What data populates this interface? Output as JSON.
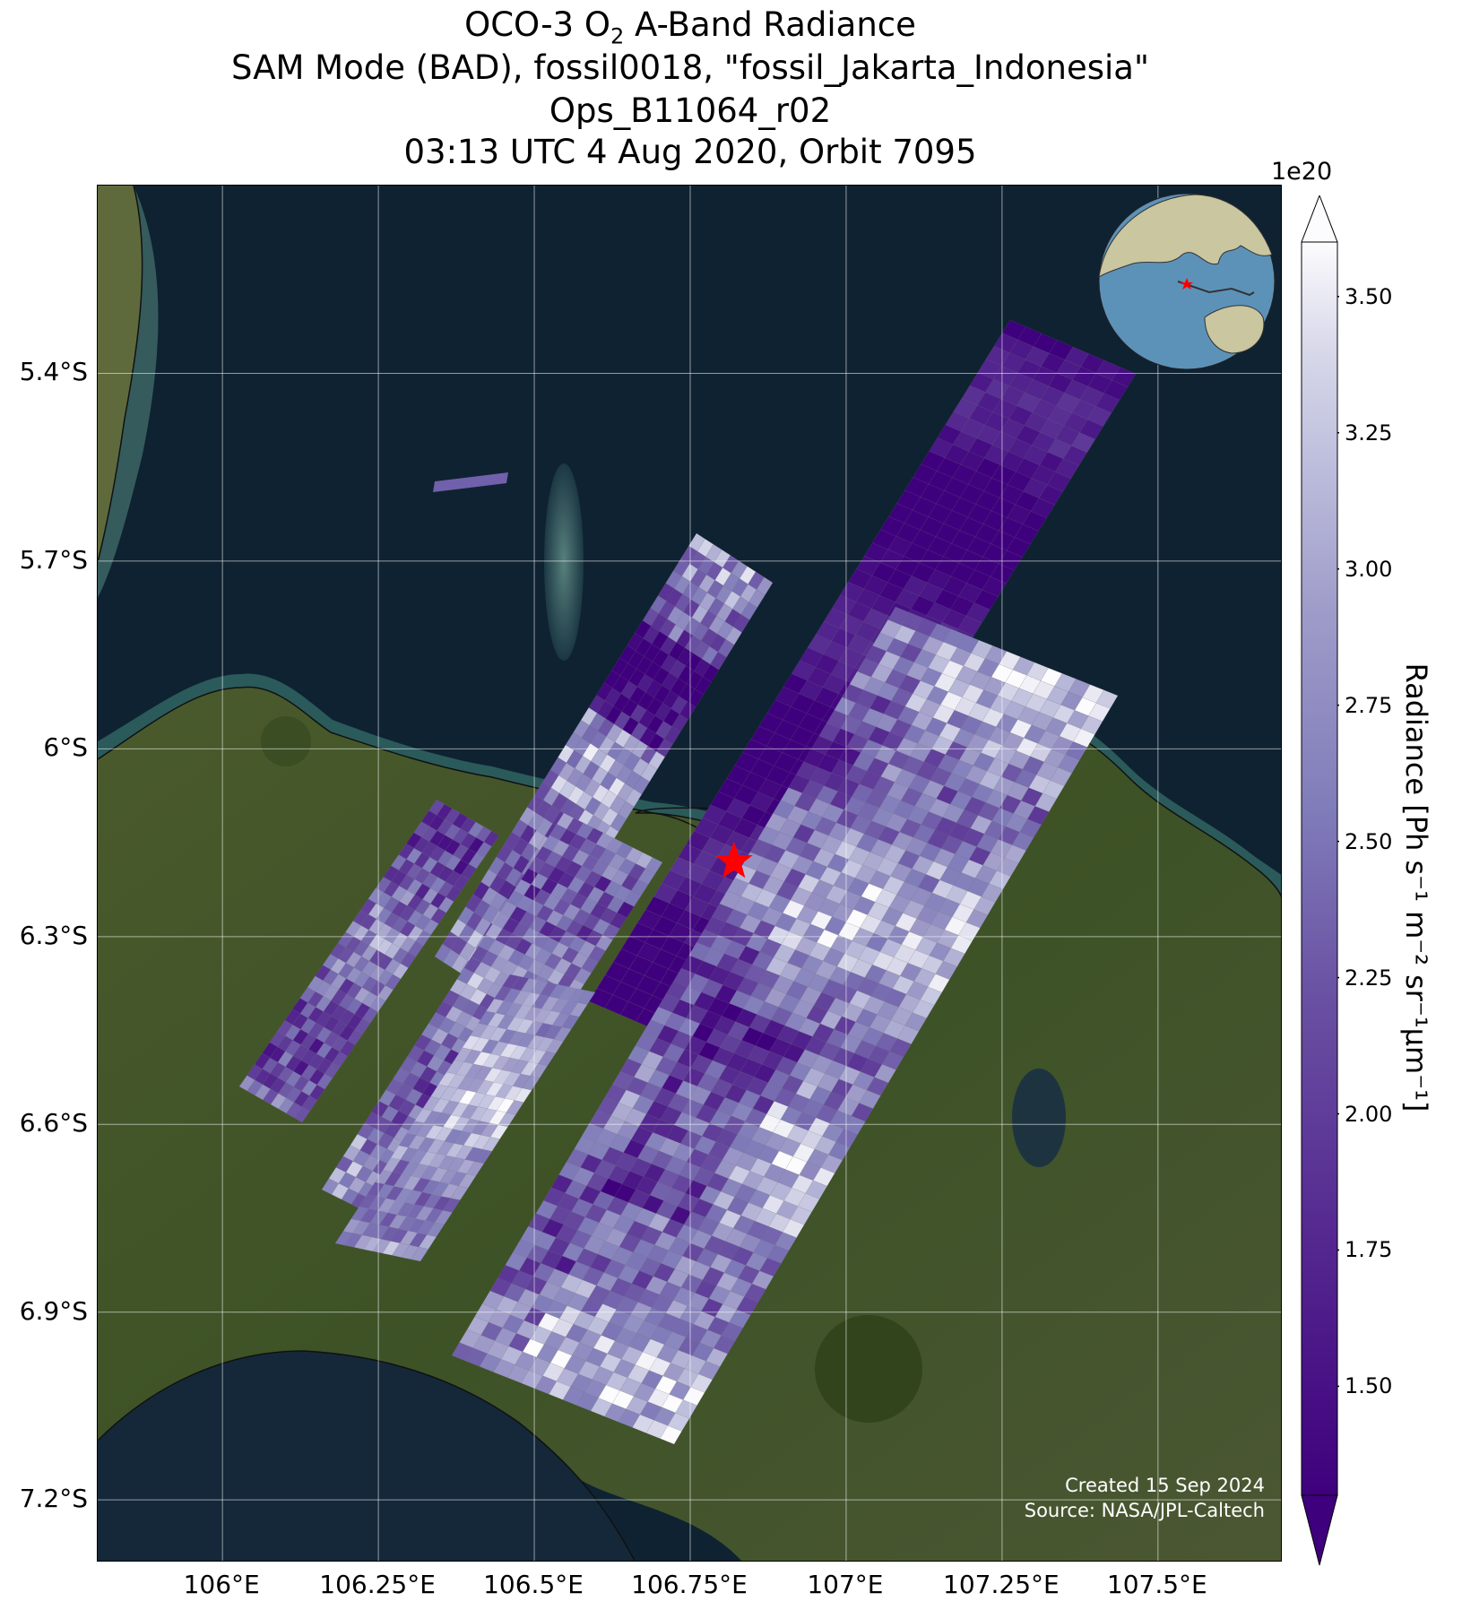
{
  "title": {
    "line1_prefix": "OCO-3 O",
    "line1_sub": "2",
    "line1_suffix": " A-Band Radiance",
    "line2": "SAM Mode (BAD), fossil0018, \"fossil_Jakarta_Indonesia\"",
    "line3": "Ops_B11064_r02",
    "line4": "03:13 UTC 4 Aug 2020, Orbit 7095"
  },
  "axes": {
    "lat_ticks": [
      "5.4°S",
      "5.7°S",
      "6°S",
      "6.3°S",
      "6.6°S",
      "6.9°S",
      "7.2°S"
    ],
    "lon_ticks": [
      "106°E",
      "106.25°E",
      "106.5°E",
      "106.75°E",
      "107°E",
      "107.25°E",
      "107.5°E"
    ]
  },
  "colorbar": {
    "label": "Radiance [Ph s⁻¹ m⁻² sr⁻¹μm⁻¹]",
    "exponent": "1e20",
    "ticks": [
      "1.50",
      "1.75",
      "2.00",
      "2.25",
      "2.50",
      "2.75",
      "3.00",
      "3.25",
      "3.50"
    ],
    "tick_values": [
      1.5,
      1.75,
      2.0,
      2.25,
      2.5,
      2.75,
      3.0,
      3.25,
      3.5
    ],
    "range": [
      1.3,
      3.6
    ],
    "extend": "both",
    "colormap": "Purples_r",
    "low_color": "#3f007d",
    "high_color": "#fcfbfd"
  },
  "map": {
    "lat_range": [
      -7.3,
      -5.1
    ],
    "lon_range": [
      105.8,
      107.7
    ],
    "grid": true,
    "basemap": "satellite imagery",
    "target_marker": {
      "lat": -6.18,
      "lon": 106.82,
      "color": "#ff0000",
      "icon": "red-star-icon"
    }
  },
  "inset": {
    "type": "globe",
    "marker_color": "#ff0000"
  },
  "credits": {
    "created": "Created 15 Sep 2024",
    "source": "Source: NASA/JPL-Caltech"
  }
}
